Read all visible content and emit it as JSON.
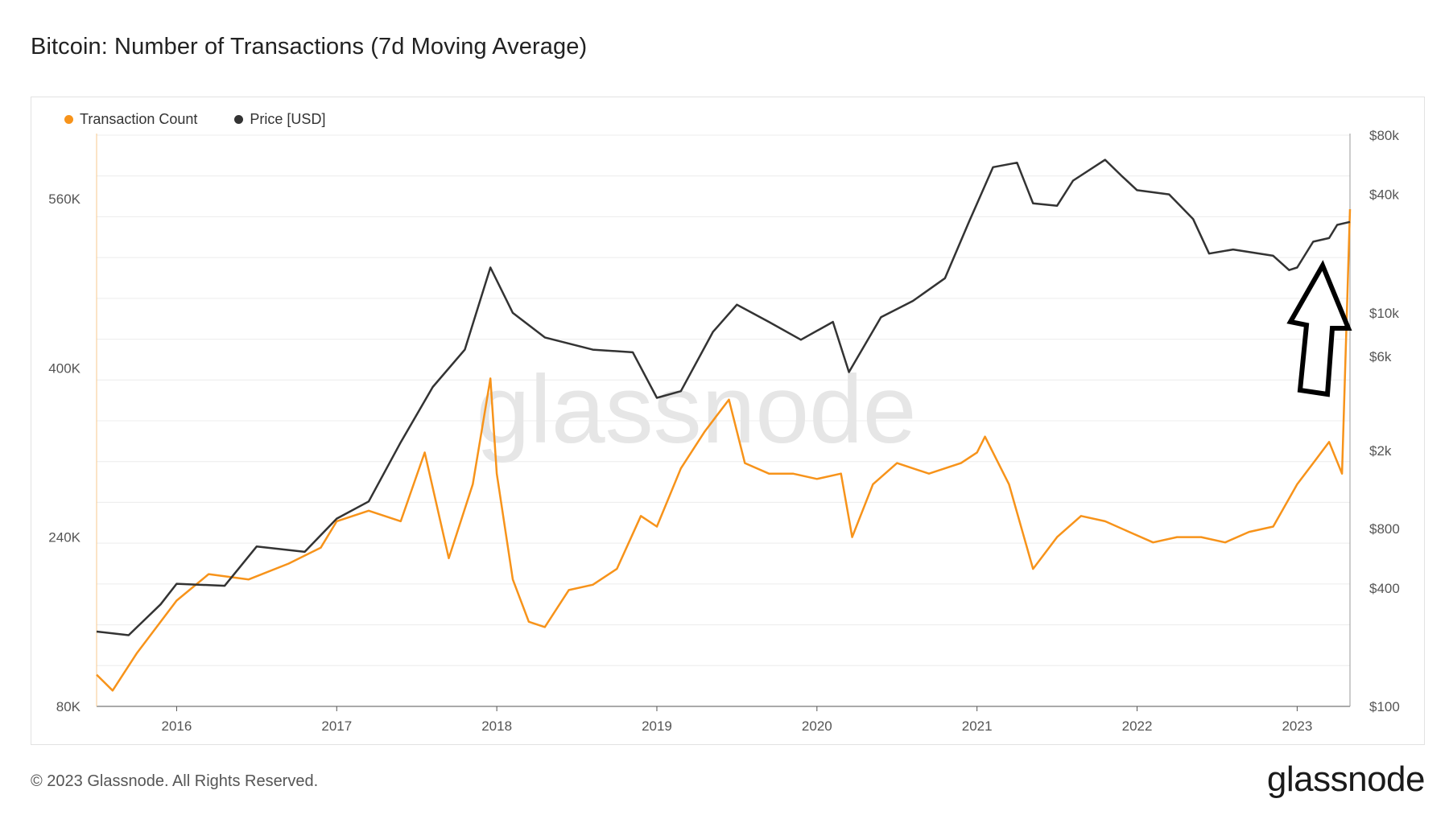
{
  "title": "Bitcoin: Number of Transactions (7d Moving Average)",
  "footer": "© 2023 Glassnode. All Rights Reserved.",
  "brand": "glassnode",
  "watermark": "glassnode",
  "colors": {
    "tx": "#f7931a",
    "price": "#333333",
    "grid": "#ececec",
    "arrow": "#000000"
  },
  "annotation": {
    "type": "arrow-up",
    "icon": "arrow-up-outline-icon"
  },
  "chart_data": {
    "type": "line",
    "title": "Bitcoin: Number of Transactions (7d Moving Average)",
    "legend_placement": "top-left",
    "grid": true,
    "x_ticks": [
      "2016",
      "2017",
      "2018",
      "2019",
      "2020",
      "2021",
      "2022",
      "2023"
    ],
    "xlim": [
      2015.5,
      2023.33
    ],
    "y_left": {
      "ticks": [
        "80K",
        "240K",
        "400K",
        "560K"
      ],
      "tick_values": [
        80000,
        240000,
        400000,
        560000
      ],
      "lim": [
        80000,
        620000
      ]
    },
    "y_right": {
      "scale": "log",
      "ticks": [
        "$100",
        "$400",
        "$800",
        "$2k",
        "$6k",
        "$10k",
        "$40k",
        "$80k"
      ],
      "tick_values": [
        100,
        400,
        800,
        2000,
        6000,
        10000,
        40000,
        80000
      ],
      "lim": [
        100,
        80000
      ]
    },
    "series": [
      {
        "name": "Transaction Count",
        "axis": "left",
        "x": [
          2015.5,
          2015.6,
          2015.75,
          2016.0,
          2016.2,
          2016.45,
          2016.7,
          2016.9,
          2017.0,
          2017.2,
          2017.4,
          2017.55,
          2017.7,
          2017.85,
          2017.96,
          2018.0,
          2018.1,
          2018.2,
          2018.3,
          2018.45,
          2018.6,
          2018.75,
          2018.9,
          2019.0,
          2019.15,
          2019.3,
          2019.45,
          2019.55,
          2019.7,
          2019.85,
          2020.0,
          2020.15,
          2020.22,
          2020.35,
          2020.5,
          2020.7,
          2020.9,
          2021.0,
          2021.05,
          2021.2,
          2021.35,
          2021.5,
          2021.65,
          2021.8,
          2021.95,
          2022.1,
          2022.25,
          2022.4,
          2022.55,
          2022.7,
          2022.85,
          2023.0,
          2023.1,
          2023.2,
          2023.28,
          2023.33
        ],
        "values": [
          110000,
          95000,
          130000,
          180000,
          205000,
          200000,
          215000,
          230000,
          255000,
          265000,
          255000,
          320000,
          220000,
          290000,
          390000,
          300000,
          200000,
          160000,
          155000,
          190000,
          195000,
          210000,
          260000,
          250000,
          305000,
          340000,
          370000,
          310000,
          300000,
          300000,
          295000,
          300000,
          240000,
          290000,
          310000,
          300000,
          310000,
          320000,
          335000,
          290000,
          210000,
          240000,
          260000,
          255000,
          245000,
          235000,
          240000,
          240000,
          235000,
          245000,
          250000,
          290000,
          310000,
          330000,
          300000,
          550000
        ]
      },
      {
        "name": "Price [USD]",
        "axis": "right",
        "x": [
          2015.5,
          2015.7,
          2015.9,
          2016.0,
          2016.3,
          2016.5,
          2016.8,
          2017.0,
          2017.2,
          2017.4,
          2017.6,
          2017.8,
          2017.96,
          2018.1,
          2018.3,
          2018.6,
          2018.85,
          2019.0,
          2019.15,
          2019.35,
          2019.5,
          2019.7,
          2019.9,
          2020.1,
          2020.2,
          2020.4,
          2020.6,
          2020.8,
          2020.95,
          2021.1,
          2021.25,
          2021.35,
          2021.5,
          2021.6,
          2021.8,
          2021.9,
          2022.0,
          2022.2,
          2022.35,
          2022.45,
          2022.6,
          2022.85,
          2022.95,
          2023.0,
          2023.1,
          2023.2,
          2023.25,
          2023.33
        ],
        "values": [
          240,
          230,
          330,
          420,
          410,
          650,
          610,
          900,
          1100,
          2200,
          4200,
          6500,
          17000,
          10000,
          7500,
          6500,
          6300,
          3700,
          4000,
          8000,
          11000,
          9000,
          7300,
          9000,
          5000,
          9500,
          11500,
          15000,
          29000,
          55000,
          58000,
          36000,
          35000,
          47000,
          60000,
          50000,
          42000,
          40000,
          30000,
          20000,
          21000,
          19500,
          16500,
          17000,
          23000,
          24000,
          28000,
          29000
        ]
      }
    ]
  }
}
